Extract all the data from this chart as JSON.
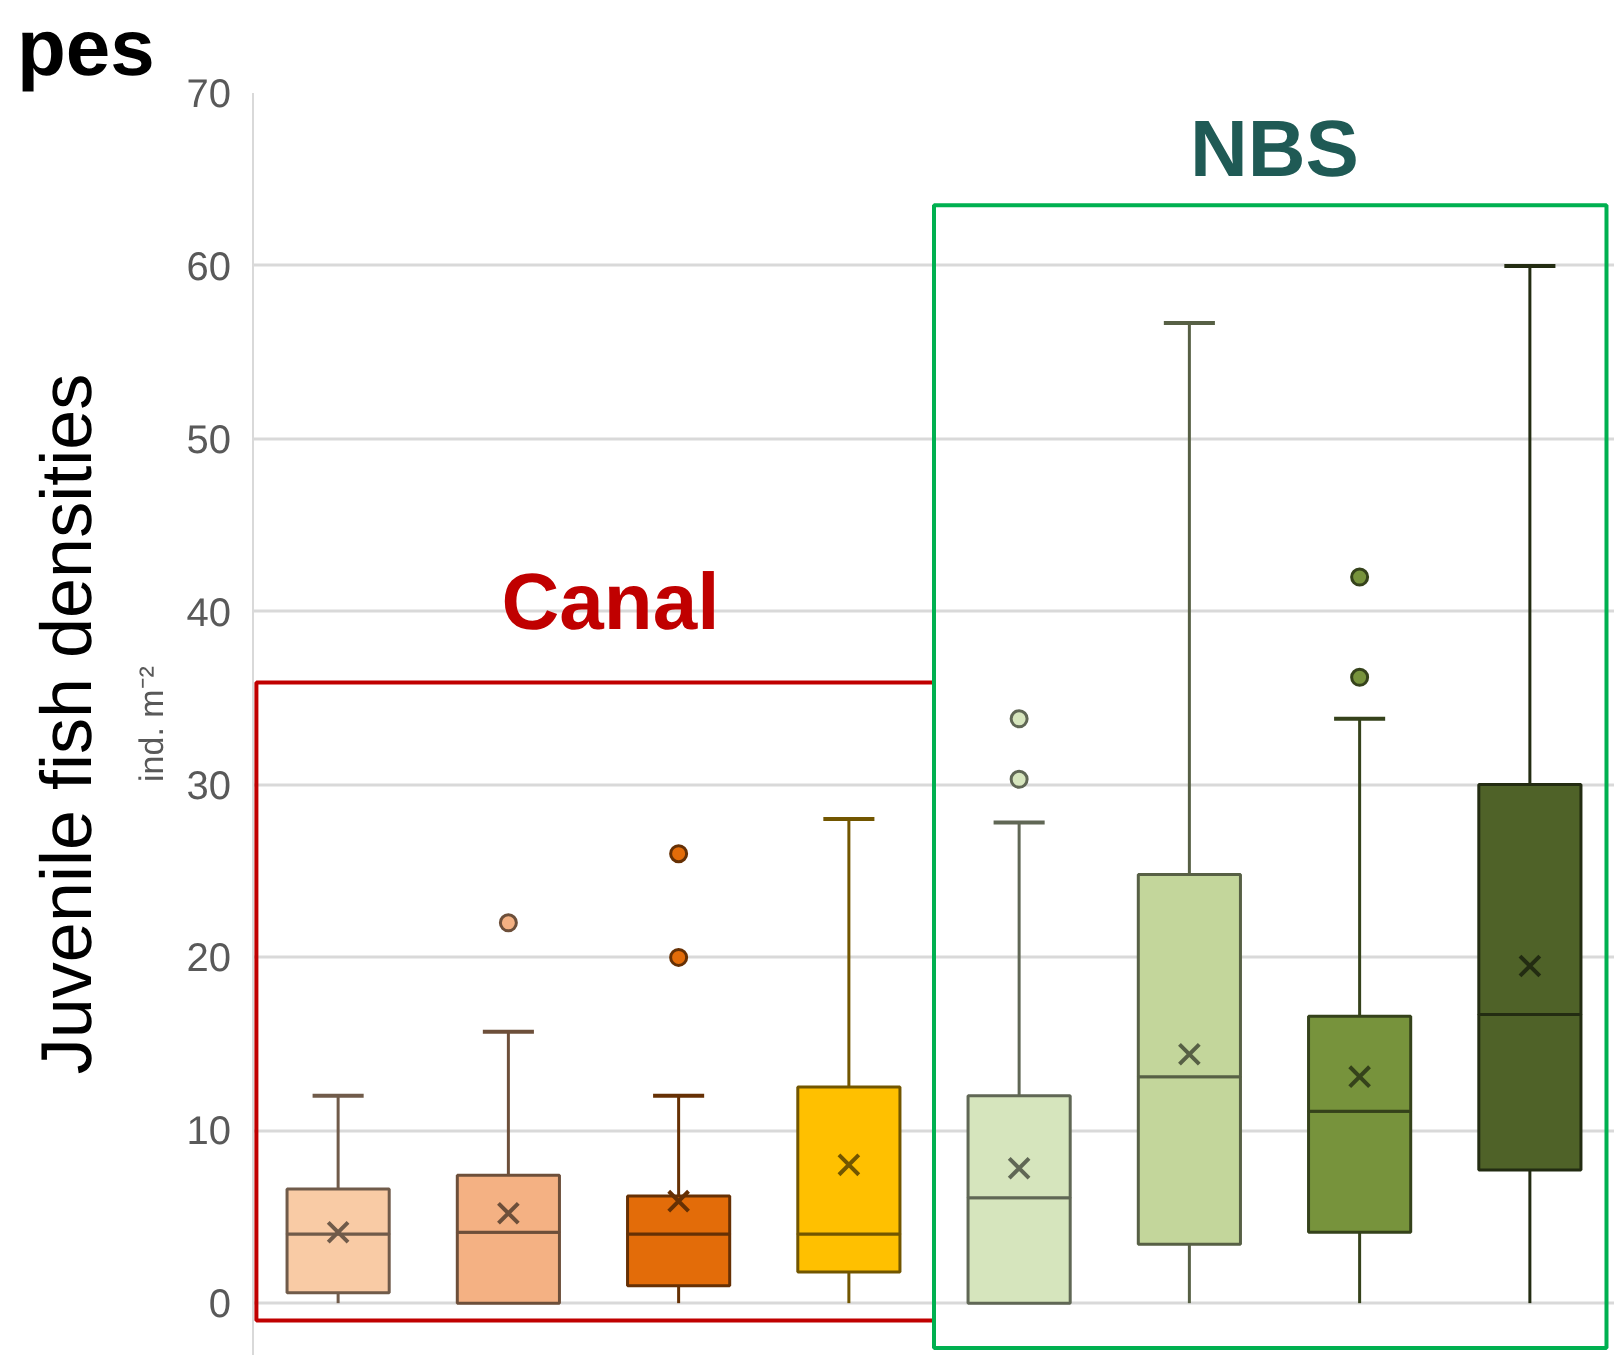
{
  "chart_data": {
    "type": "box",
    "title": "pes",
    "ylabel": "ind. m⁻²",
    "annotations": [
      "Juvenile fish densities",
      "Canal",
      "NBS"
    ],
    "categories": [
      null,
      null,
      null,
      null,
      null,
      null,
      null,
      null
    ],
    "colors": [
      "#f9cba5",
      "#f4b183",
      "#e36c09",
      "#ffc000",
      "#d6e5bd",
      "#c3d69b",
      "#77933c",
      "#4f6228"
    ],
    "boxes": [
      {
        "low": 0,
        "q1": 0.6,
        "median": 4.0,
        "q3": 6.6,
        "high": 12,
        "mean": 4.1
      },
      {
        "low": 0,
        "q1": 0,
        "median": 4.1,
        "q3": 7.4,
        "high": 15.7,
        "mean": 5.2,
        "outliers": [
          22
        ]
      },
      {
        "low": 0,
        "q1": 1.0,
        "median": 4.0,
        "q3": 6.2,
        "high": 12,
        "mean": 5.9,
        "outliers": [
          20,
          26
        ]
      },
      {
        "low": 0,
        "q1": 1.8,
        "median": 4.0,
        "q3": 12.5,
        "high": 28,
        "mean": 8.0
      },
      {
        "low": 0,
        "q1": 0,
        "median": 6.1,
        "q3": 12.0,
        "high": 27.8,
        "mean": 7.8,
        "outliers": [
          30.3,
          33.8
        ]
      },
      {
        "low": 0,
        "q1": 3.4,
        "median": 13.1,
        "q3": 24.8,
        "high": 56.7,
        "mean": 14.4
      },
      {
        "low": 0,
        "q1": 4.1,
        "median": 11.1,
        "q3": 16.6,
        "high": 33.8,
        "mean": 13.1,
        "outliers": [
          36.2,
          42
        ]
      },
      {
        "low": 0,
        "q1": 7.7,
        "median": 16.7,
        "q3": 30,
        "high": 60,
        "mean": 19.5
      }
    ],
    "ylim": [
      -3,
      70
    ],
    "yticks": [
      0,
      10,
      20,
      30,
      40,
      50,
      60,
      70
    ],
    "grid": "y",
    "marker": "circle"
  }
}
